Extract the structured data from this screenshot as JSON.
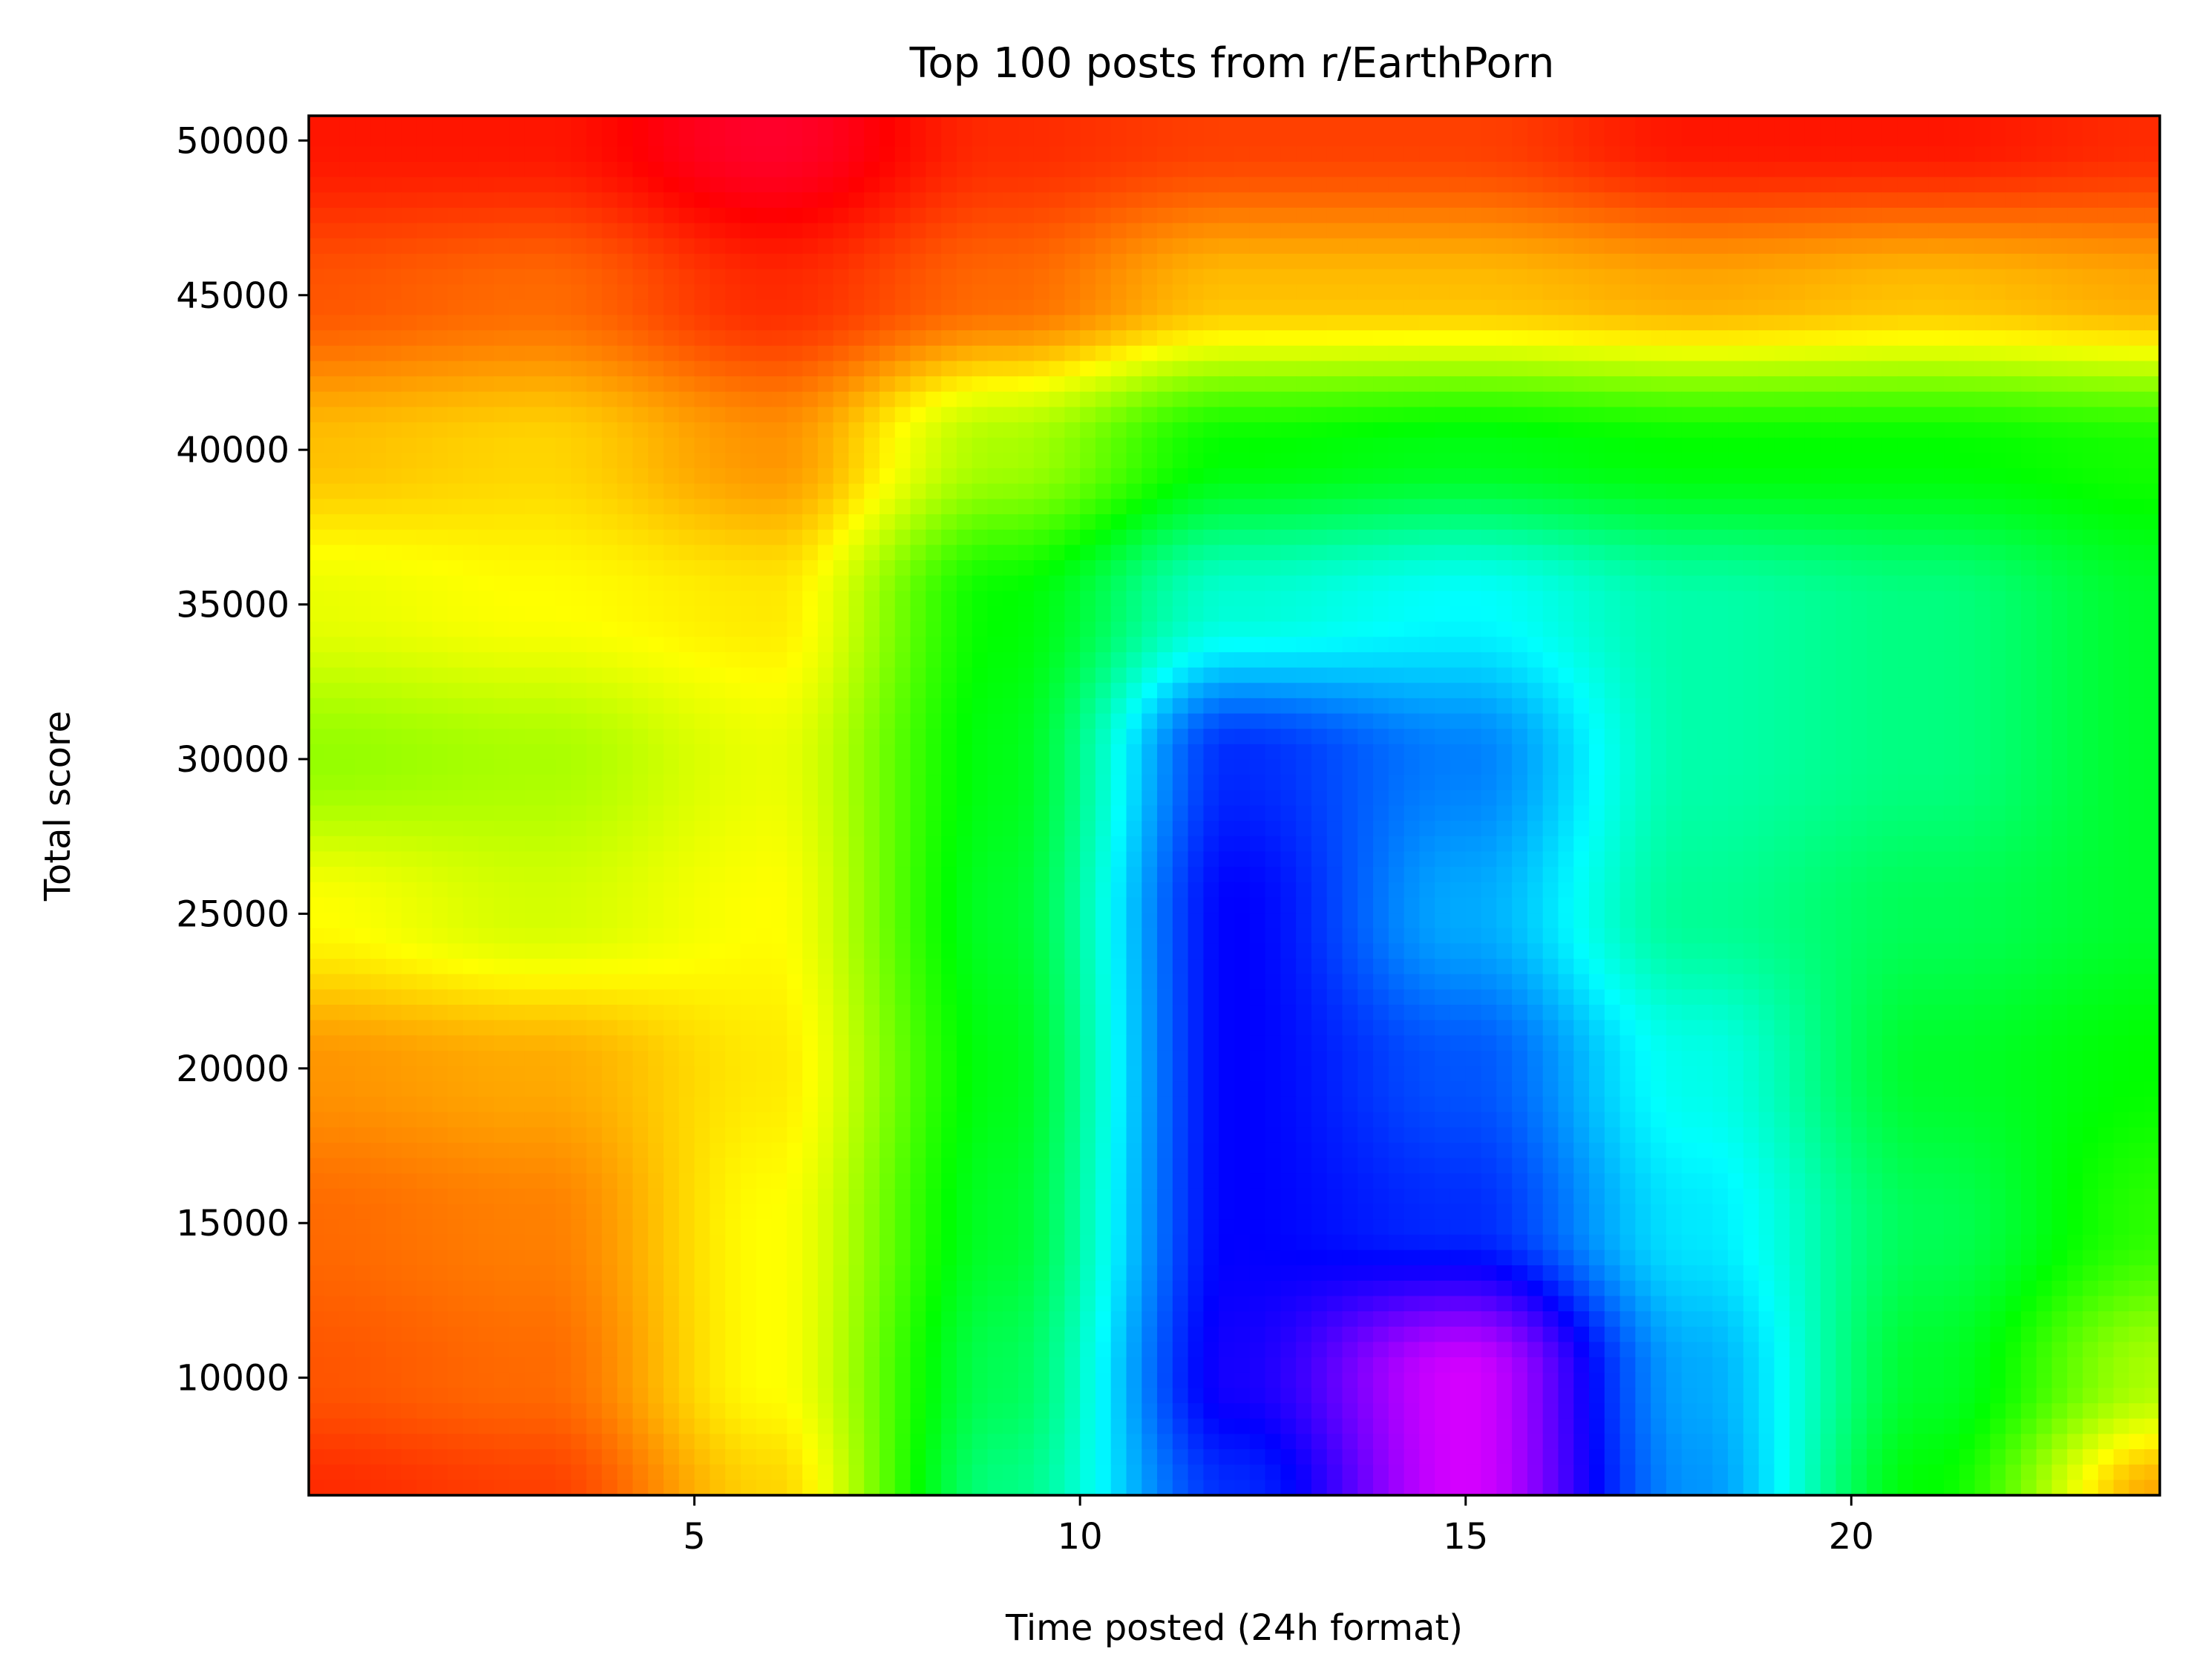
{
  "chart_data": {
    "type": "heatmap",
    "title": "Top 100 posts from r/EarthPorn",
    "xlabel": "Time posted (24h format)",
    "ylabel": "Total score",
    "xlim": [
      0,
      24
    ],
    "ylim": [
      6200,
      50800
    ],
    "x_ticks": [
      {
        "value": 5,
        "label": "5"
      },
      {
        "value": 10,
        "label": "10"
      },
      {
        "value": 15,
        "label": "15"
      },
      {
        "value": 20,
        "label": "20"
      }
    ],
    "y_ticks": [
      {
        "value": 10000,
        "label": "10000"
      },
      {
        "value": 15000,
        "label": "15000"
      },
      {
        "value": 20000,
        "label": "20000"
      },
      {
        "value": 25000,
        "label": "25000"
      },
      {
        "value": 30000,
        "label": "30000"
      },
      {
        "value": 35000,
        "label": "35000"
      },
      {
        "value": 40000,
        "label": "40000"
      },
      {
        "value": 45000,
        "label": "45000"
      },
      {
        "value": 50000,
        "label": "50000"
      }
    ],
    "colormap": "hsv (red → yellow → green → cyan → blue → magenta)",
    "grid": false,
    "legend": "none",
    "x_sample_hours": [
      0,
      3,
      6,
      9,
      12,
      15,
      18,
      21,
      24
    ],
    "y_sample_scores": [
      50000,
      45000,
      40000,
      35000,
      30000,
      25000,
      20000,
      15000,
      10000,
      6200
    ],
    "hue_grid_degrees": [
      [
        5,
        5,
        350,
        10,
        15,
        15,
        5,
        5,
        10
      ],
      [
        20,
        25,
        10,
        25,
        45,
        45,
        40,
        45,
        40
      ],
      [
        45,
        50,
        35,
        80,
        120,
        125,
        120,
        120,
        115
      ],
      [
        65,
        60,
        55,
        120,
        170,
        180,
        160,
        150,
        130
      ],
      [
        85,
        80,
        65,
        125,
        230,
        210,
        160,
        150,
        130
      ],
      [
        60,
        70,
        60,
        130,
        240,
        200,
        155,
        140,
        130
      ],
      [
        35,
        40,
        55,
        125,
        240,
        220,
        175,
        130,
        120
      ],
      [
        25,
        30,
        60,
        130,
        240,
        230,
        185,
        140,
        110
      ],
      [
        20,
        25,
        60,
        140,
        245,
        290,
        200,
        130,
        80
      ],
      [
        10,
        15,
        50,
        150,
        230,
        290,
        205,
        120,
        40
      ]
    ]
  }
}
